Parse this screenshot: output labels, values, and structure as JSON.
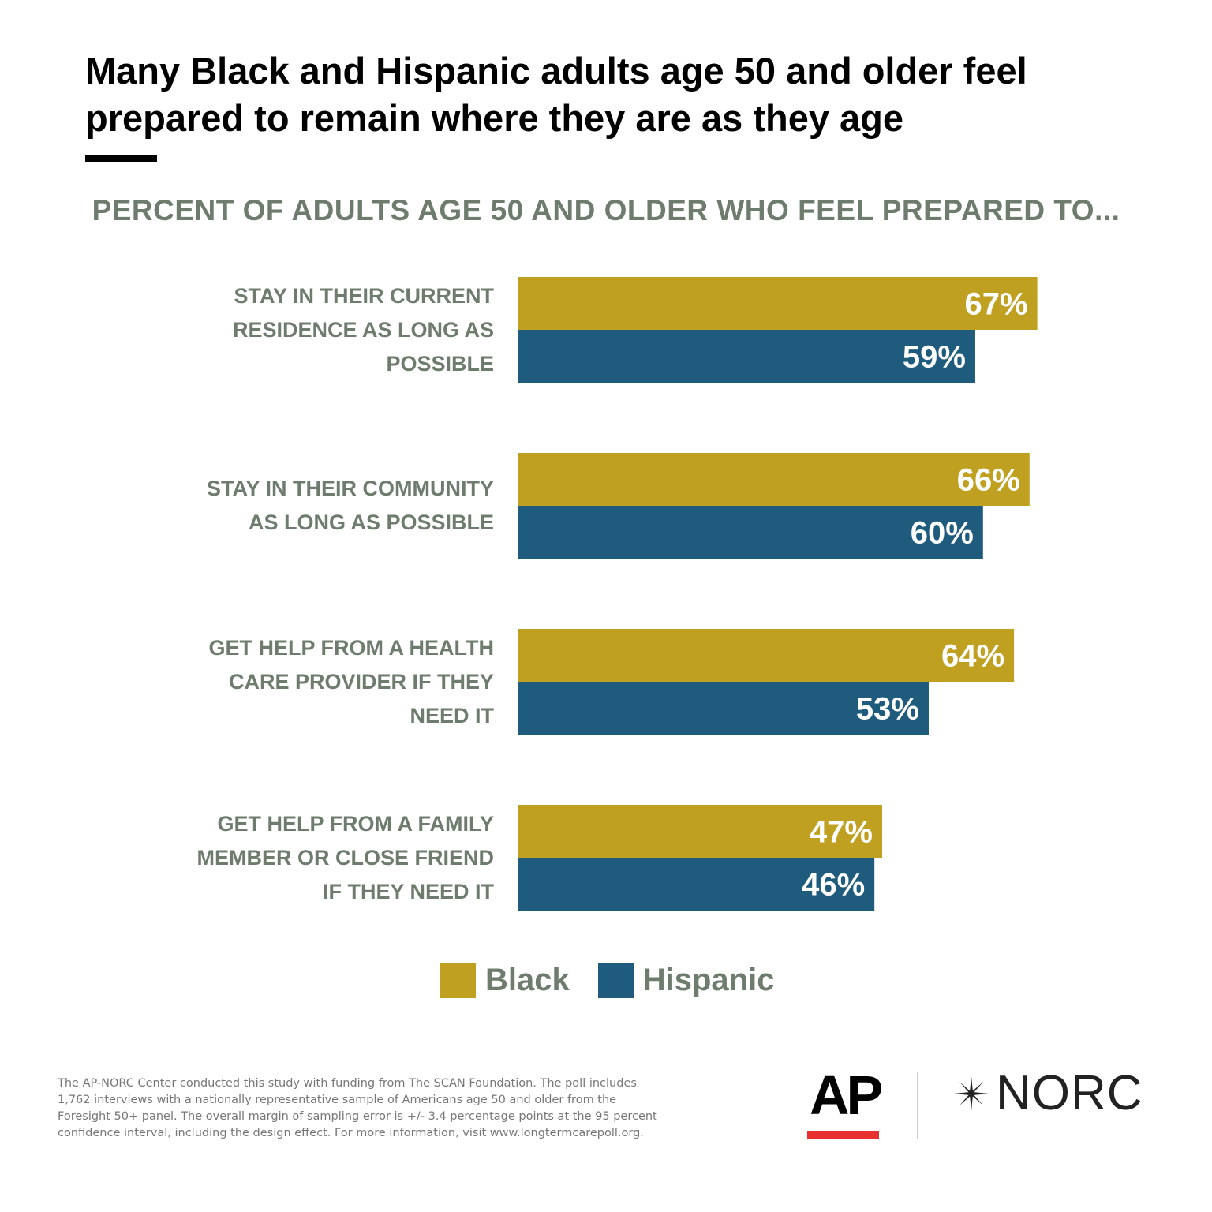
{
  "title": "Many Black and Hispanic adults age 50 and older feel prepared to remain where they are as they age",
  "subtitle": "PERCENT OF ADULTS AGE 50 AND OLDER WHO FEEL PREPARED TO...",
  "colors": {
    "black": "#c0a020",
    "hispanic": "#1e5b7c",
    "label_gray": "#6e7c6e",
    "ap_red": "#e8302e"
  },
  "chart_data": {
    "type": "bar",
    "orientation": "horizontal",
    "categories": [
      "STAY IN THEIR CURRENT\nRESIDENCE AS LONG AS\nPOSSIBLE",
      "STAY IN THEIR COMMUNITY\nAS LONG AS POSSIBLE",
      "GET HELP FROM A HEALTH\nCARE PROVIDER IF THEY\nNEED IT",
      "GET HELP FROM A FAMILY\nMEMBER OR CLOSE FRIEND\nIF THEY NEED IT"
    ],
    "series": [
      {
        "name": "Black",
        "values": [
          67,
          66,
          64,
          47
        ],
        "labels": [
          "67%",
          "66%",
          "64%",
          "47%"
        ]
      },
      {
        "name": "Hispanic",
        "values": [
          59,
          60,
          53,
          46
        ],
        "labels": [
          "59%",
          "60%",
          "53%",
          "46%"
        ]
      }
    ],
    "unit": "%",
    "legend": "bottom-center",
    "grid": false
  },
  "legend": {
    "black": "Black",
    "hispanic": "Hispanic"
  },
  "footnote": "The AP-NORC Center conducted this study with funding from The SCAN Foundation. The poll includes 1,762 interviews with a nationally representative sample of Americans age 50 and older from the Foresight 50+ panel. The overall margin of sampling error is +/- 3.4 percentage points at the 95 percent confidence interval, including the design effect. For more information, visit www.longtermcarepoll.org.",
  "logos": {
    "ap": "AP",
    "norc": "NORC",
    "norc_icon": "star-icon"
  }
}
